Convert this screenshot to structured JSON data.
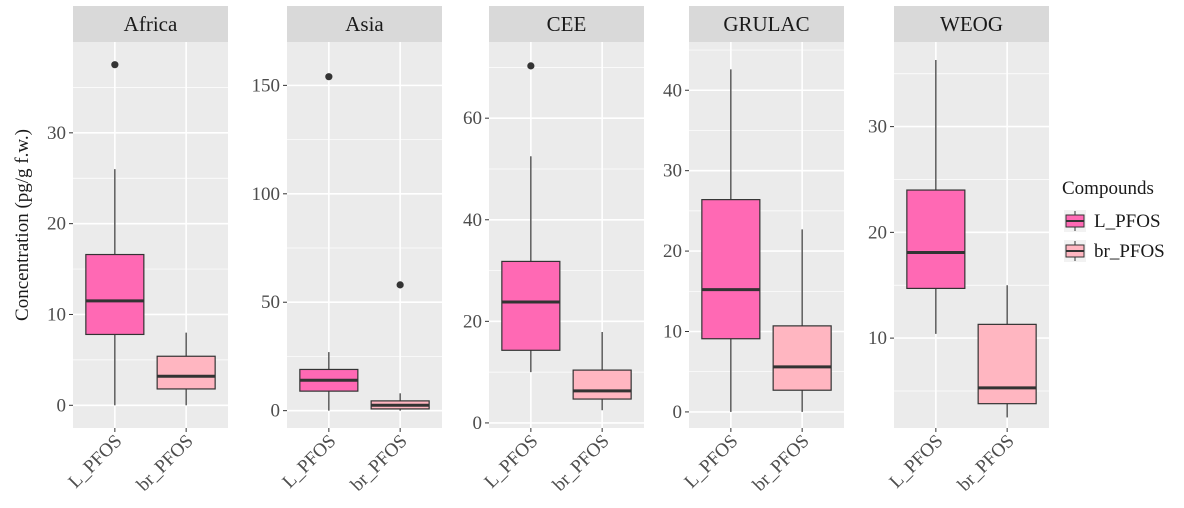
{
  "chart_data": {
    "type": "boxplot",
    "ylabel": "Concentration (pg/g f.w.)",
    "legend": {
      "title": "Compounds",
      "position": "right",
      "entries": [
        {
          "label": "L_PFOS",
          "color": "#FF69B4"
        },
        {
          "label": "br_PFOS",
          "color": "#FFB6C1"
        }
      ]
    },
    "categories": [
      "L_PFOS",
      "br_PFOS"
    ],
    "panel_background": "#EBEBEB",
    "strip_background": "#D9D9D9",
    "grid": true,
    "facets": [
      {
        "name": "Africa",
        "ylim": [
          -2.5,
          40
        ],
        "yticks": [
          0,
          10,
          20,
          30
        ],
        "boxes": [
          {
            "category": "L_PFOS",
            "min": 0,
            "q1": 7.8,
            "median": 11.5,
            "q3": 16.6,
            "max": 26,
            "outliers": [
              37.5
            ]
          },
          {
            "category": "br_PFOS",
            "min": 0,
            "q1": 1.8,
            "median": 3.2,
            "q3": 5.4,
            "max": 8,
            "outliers": []
          }
        ]
      },
      {
        "name": "Asia",
        "ylim": [
          -8,
          170
        ],
        "yticks": [
          0,
          50,
          100,
          150
        ],
        "boxes": [
          {
            "category": "L_PFOS",
            "min": 0,
            "q1": 9,
            "median": 14,
            "q3": 19,
            "max": 27,
            "outliers": [
              154
            ]
          },
          {
            "category": "br_PFOS",
            "min": 0,
            "q1": 0.8,
            "median": 2.5,
            "q3": 4.5,
            "max": 8,
            "outliers": [
              58
            ]
          }
        ]
      },
      {
        "name": "CEE",
        "ylim": [
          -1,
          75
        ],
        "yticks": [
          0,
          20,
          40,
          60
        ],
        "boxes": [
          {
            "category": "L_PFOS",
            "min": 10,
            "q1": 14.3,
            "median": 23.8,
            "q3": 31.8,
            "max": 52.5,
            "outliers": [
              70.3
            ]
          },
          {
            "category": "br_PFOS",
            "min": 2.5,
            "q1": 4.7,
            "median": 6.3,
            "q3": 10.4,
            "max": 17.9,
            "outliers": []
          }
        ]
      },
      {
        "name": "GRULAC",
        "ylim": [
          -2,
          46
        ],
        "yticks": [
          0,
          10,
          20,
          30,
          40
        ],
        "boxes": [
          {
            "category": "L_PFOS",
            "min": 0,
            "q1": 9.1,
            "median": 15.2,
            "q3": 26.4,
            "max": 42.6,
            "outliers": []
          },
          {
            "category": "br_PFOS",
            "min": 0,
            "q1": 2.7,
            "median": 5.6,
            "q3": 10.7,
            "max": 22.7,
            "outliers": []
          }
        ]
      },
      {
        "name": "WEOG",
        "ylim": [
          1.5,
          38
        ],
        "yticks": [
          10,
          20,
          30
        ],
        "boxes": [
          {
            "category": "L_PFOS",
            "min": 10.4,
            "q1": 14.7,
            "median": 18.1,
            "q3": 24,
            "max": 36.3,
            "outliers": []
          },
          {
            "category": "br_PFOS",
            "min": 2.5,
            "q1": 3.8,
            "median": 5.3,
            "q3": 11.3,
            "max": 15,
            "outliers": []
          }
        ]
      }
    ]
  }
}
